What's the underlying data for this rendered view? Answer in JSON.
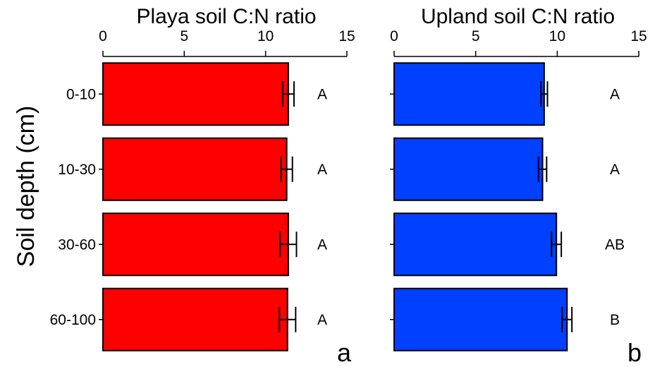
{
  "ylabel": "Soil depth (cm)",
  "chart_data": [
    {
      "type": "bar",
      "orientation": "horizontal",
      "panel_label": "a",
      "title": "Playa soil C:N ratio",
      "categories": [
        "0-10",
        "10-30",
        "30-60",
        "60-100"
      ],
      "values": [
        11.4,
        11.3,
        11.4,
        11.35
      ],
      "errors": [
        0.35,
        0.35,
        0.5,
        0.5
      ],
      "significance": [
        "A",
        "A",
        "A",
        "A"
      ],
      "xlim": [
        0,
        15
      ],
      "xticks": [
        0,
        5,
        10,
        15
      ],
      "x_axis_position": "top",
      "color": "#ff0000",
      "grid": false
    },
    {
      "type": "bar",
      "orientation": "horizontal",
      "panel_label": "b",
      "title": "Upland soil C:N ratio",
      "categories": [
        "0-10",
        "10-30",
        "30-60",
        "60-100"
      ],
      "values": [
        9.2,
        9.1,
        9.95,
        10.6
      ],
      "errors": [
        0.2,
        0.25,
        0.3,
        0.3
      ],
      "significance": [
        "A",
        "A",
        "AB",
        "B"
      ],
      "xlim": [
        0,
        15
      ],
      "xticks": [
        0,
        5,
        10,
        15
      ],
      "x_axis_position": "top",
      "color": "#0040ff",
      "grid": false
    }
  ]
}
